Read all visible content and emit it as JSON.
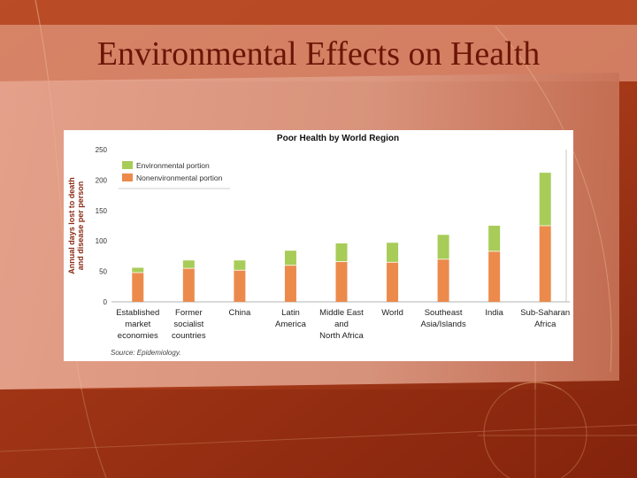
{
  "slide": {
    "title": "Environmental Effects on Health"
  },
  "colors": {
    "environmental": "#a8cc58",
    "nonenvironmental": "#ec8a4c",
    "title_text": "#6b1507"
  },
  "chart_data": {
    "type": "bar",
    "stacked": true,
    "title": "Poor Health by World Region",
    "ylabel_lines": [
      "Annual days lost to death",
      "and disease per person"
    ],
    "ylim": [
      0,
      250
    ],
    "yticks": [
      0,
      50,
      100,
      150,
      200,
      250
    ],
    "grid": false,
    "legend_position": "top-left",
    "categories": [
      [
        "Established",
        "market",
        "economies"
      ],
      [
        "Former",
        "socialist",
        "countries"
      ],
      [
        "China"
      ],
      [
        "Latin",
        "America"
      ],
      [
        "Middle East",
        "and",
        "North Africa"
      ],
      [
        "World"
      ],
      [
        "Southeast",
        "Asia/Islands"
      ],
      [
        "India"
      ],
      [
        "Sub-Saharan",
        "Africa"
      ]
    ],
    "series": [
      {
        "name": "Nonenvironmental portion",
        "values": [
          48,
          55,
          52,
          60,
          66,
          65,
          70,
          83,
          125
        ]
      },
      {
        "name": "Environmental portion",
        "values": [
          8,
          13,
          16,
          24,
          30,
          32,
          40,
          42,
          87
        ]
      }
    ],
    "legend_order": [
      1,
      0
    ],
    "source": "Source: Epidemiology."
  }
}
